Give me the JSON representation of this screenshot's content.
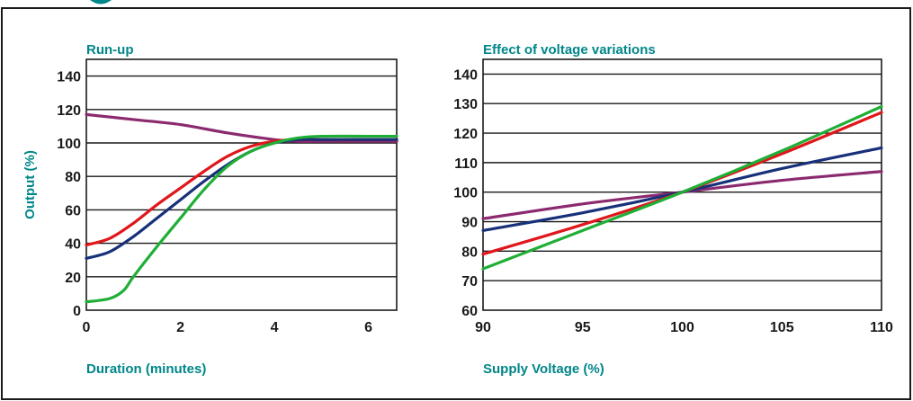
{
  "colors": {
    "teal": "#00868a",
    "purple": "#8b2a6e",
    "red": "#e0161b",
    "navy": "#17307a",
    "green": "#1fae36"
  },
  "chart_data": [
    {
      "type": "line",
      "title": "Run-up",
      "xlabel": "Duration (minutes)",
      "ylabel": "Output (%)",
      "xlim": [
        0,
        6.6
      ],
      "ylim": [
        0,
        150
      ],
      "xticks": [
        0,
        2,
        4,
        6
      ],
      "yticks": [
        0,
        20,
        40,
        60,
        80,
        100,
        120,
        140
      ],
      "grid": "horizontal",
      "series": [
        {
          "color": "#8b2a6e",
          "x": [
            0,
            1,
            2,
            3,
            4,
            4.5,
            5,
            6,
            6.6
          ],
          "y": [
            117,
            114,
            111,
            106,
            102,
            101,
            101,
            101,
            101
          ]
        },
        {
          "color": "#e0161b",
          "x": [
            0,
            0.5,
            1,
            1.5,
            2,
            2.5,
            3,
            3.5,
            4,
            4.5,
            5,
            6,
            6.6
          ],
          "y": [
            39,
            43,
            52,
            63,
            73,
            83,
            92,
            98,
            101,
            102,
            102,
            102,
            102
          ]
        },
        {
          "color": "#17307a",
          "x": [
            0,
            0.5,
            1,
            1.5,
            2,
            2.5,
            3,
            3.5,
            4,
            4.5,
            5,
            6,
            6.6
          ],
          "y": [
            31,
            35,
            44,
            55,
            66,
            77,
            87,
            95,
            100,
            102,
            102,
            102,
            102
          ]
        },
        {
          "color": "#1fae36",
          "x": [
            0,
            0.5,
            0.8,
            1,
            1.5,
            2,
            2.5,
            3,
            3.5,
            4,
            4.5,
            5,
            6,
            6.6
          ],
          "y": [
            5,
            7,
            12,
            20,
            38,
            55,
            72,
            86,
            95,
            100,
            103,
            104,
            104,
            104
          ]
        }
      ]
    },
    {
      "type": "line",
      "title": "Effect of voltage variations",
      "xlabel": "Supply Voltage (%)",
      "ylabel": "",
      "xlim": [
        90,
        110
      ],
      "ylim": [
        60,
        145
      ],
      "xticks": [
        90,
        95,
        100,
        105,
        110
      ],
      "yticks": [
        60,
        70,
        80,
        90,
        100,
        110,
        120,
        130,
        140
      ],
      "grid": "horizontal",
      "series": [
        {
          "color": "#8b2a6e",
          "x": [
            90,
            95,
            100,
            105,
            110
          ],
          "y": [
            91,
            96,
            100,
            104,
            107
          ]
        },
        {
          "color": "#17307a",
          "x": [
            90,
            95,
            100,
            105,
            110
          ],
          "y": [
            87,
            93,
            100,
            108,
            115
          ]
        },
        {
          "color": "#e0161b",
          "x": [
            90,
            95,
            100,
            105,
            110
          ],
          "y": [
            79,
            89,
            100,
            113,
            127
          ]
        },
        {
          "color": "#1fae36",
          "x": [
            90,
            95,
            100,
            105,
            110
          ],
          "y": [
            74,
            87,
            100,
            114,
            129
          ]
        }
      ]
    }
  ]
}
